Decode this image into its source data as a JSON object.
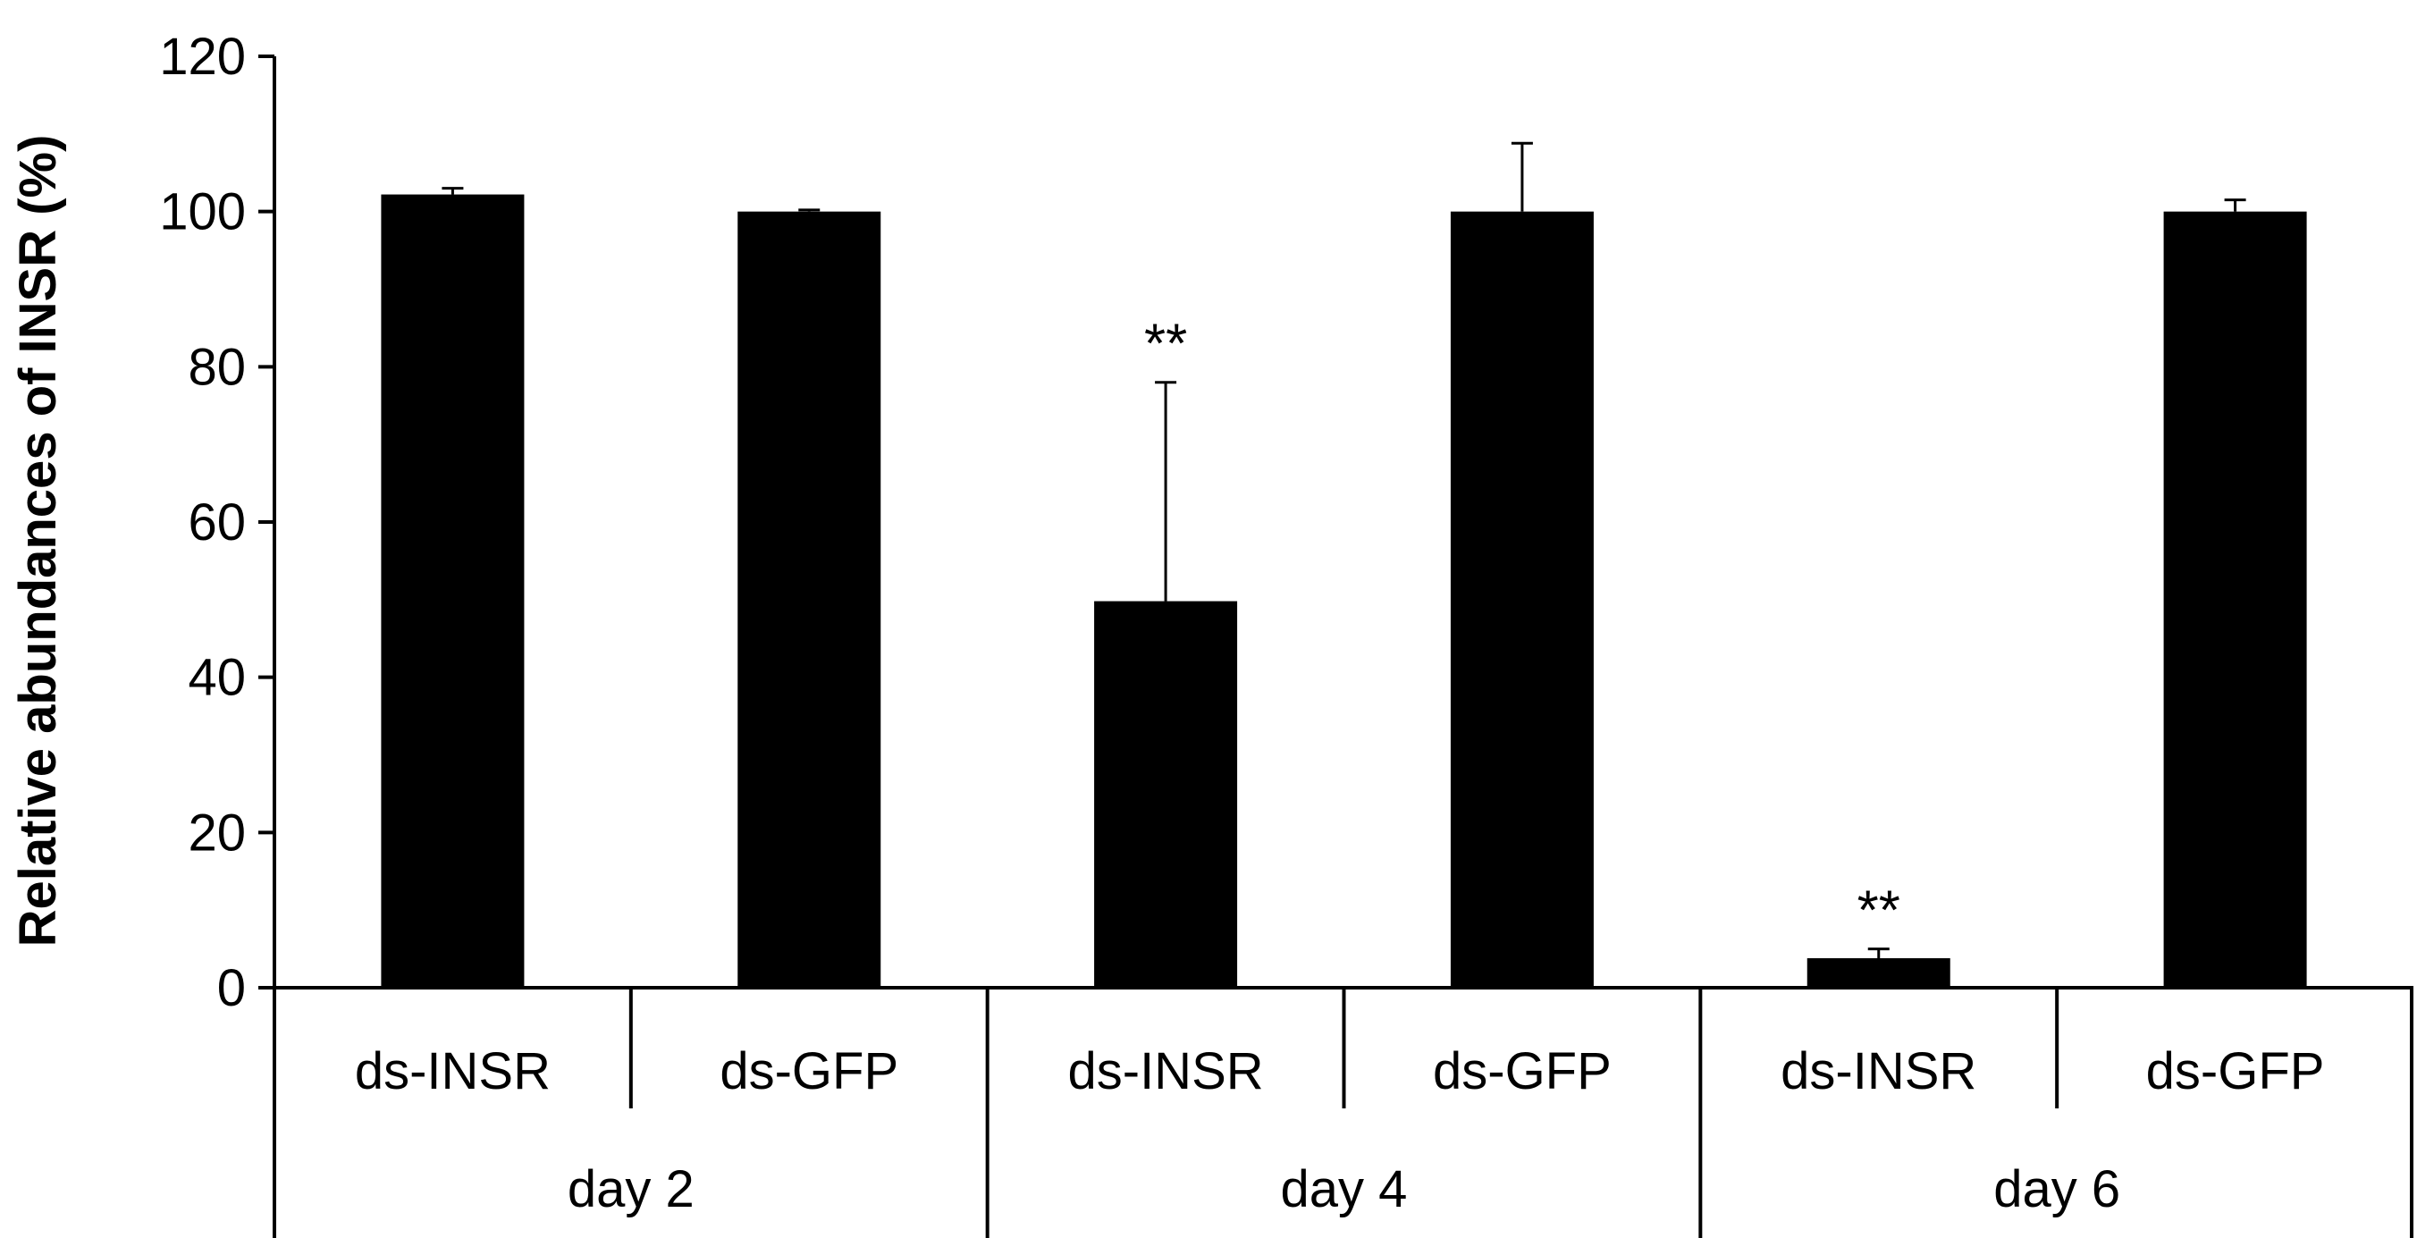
{
  "chart_data": {
    "type": "bar",
    "ylabel": "Relative abundances of INSR (%)",
    "xlabel": "",
    "title": "",
    "ylim": [
      0,
      120
    ],
    "yticks": [
      "0",
      "20",
      "40",
      "60",
      "80",
      "100",
      "120"
    ],
    "grid": false,
    "bar_color": "#000000",
    "groups": [
      {
        "label": "day 2",
        "bars": [
          {
            "category": "ds-INSR",
            "value": 102.2,
            "error": 0.8,
            "significance": ""
          },
          {
            "category": "ds-GFP",
            "value": 100.0,
            "error": 0.2,
            "significance": ""
          }
        ]
      },
      {
        "label": "day 4",
        "bars": [
          {
            "category": "ds-INSR",
            "value": 49.8,
            "error": 28.2,
            "significance": "**"
          },
          {
            "category": "ds-GFP",
            "value": 100.0,
            "error": 8.8,
            "significance": ""
          }
        ]
      },
      {
        "label": "day 6",
        "bars": [
          {
            "category": "ds-INSR",
            "value": 3.8,
            "error": 1.2,
            "significance": "**"
          },
          {
            "category": "ds-GFP",
            "value": 100.0,
            "error": 1.5,
            "significance": ""
          }
        ]
      }
    ]
  }
}
